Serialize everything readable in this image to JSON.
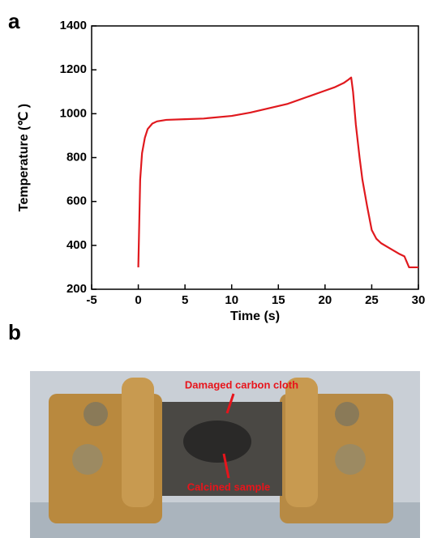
{
  "panel_labels": [
    "a",
    "b"
  ],
  "chart_data": {
    "type": "line",
    "x_label": "Time (s)",
    "y_label": "Temperature (℃ )",
    "x": [
      0,
      0.1,
      0.2,
      0.4,
      0.7,
      1,
      1.5,
      2,
      3,
      5,
      7,
      10,
      12,
      14,
      16,
      18,
      20,
      21,
      22,
      22.5,
      22.8,
      23,
      23.3,
      23.7,
      24,
      24.5,
      25,
      25.5,
      26,
      27,
      28,
      28.5,
      28.7,
      29,
      30
    ],
    "series": [
      {
        "color": "#e0191e",
        "values": [
          300,
          500,
          700,
          820,
          890,
          930,
          955,
          965,
          972,
          975,
          978,
          990,
          1005,
          1025,
          1045,
          1075,
          1105,
          1120,
          1140,
          1155,
          1165,
          1100,
          950,
          800,
          700,
          580,
          470,
          430,
          410,
          385,
          360,
          350,
          330,
          300,
          300
        ]
      }
    ],
    "xlim": [
      -5,
      30
    ],
    "xticks": [
      -5,
      0,
      5,
      10,
      15,
      20,
      25,
      30
    ],
    "ylim": [
      200,
      1400
    ],
    "yticks": [
      200,
      400,
      600,
      800,
      1000,
      1200,
      1400
    ]
  },
  "photo": {
    "annotations": [
      "Damaged carbon cloth",
      "Calcined sample"
    ]
  }
}
